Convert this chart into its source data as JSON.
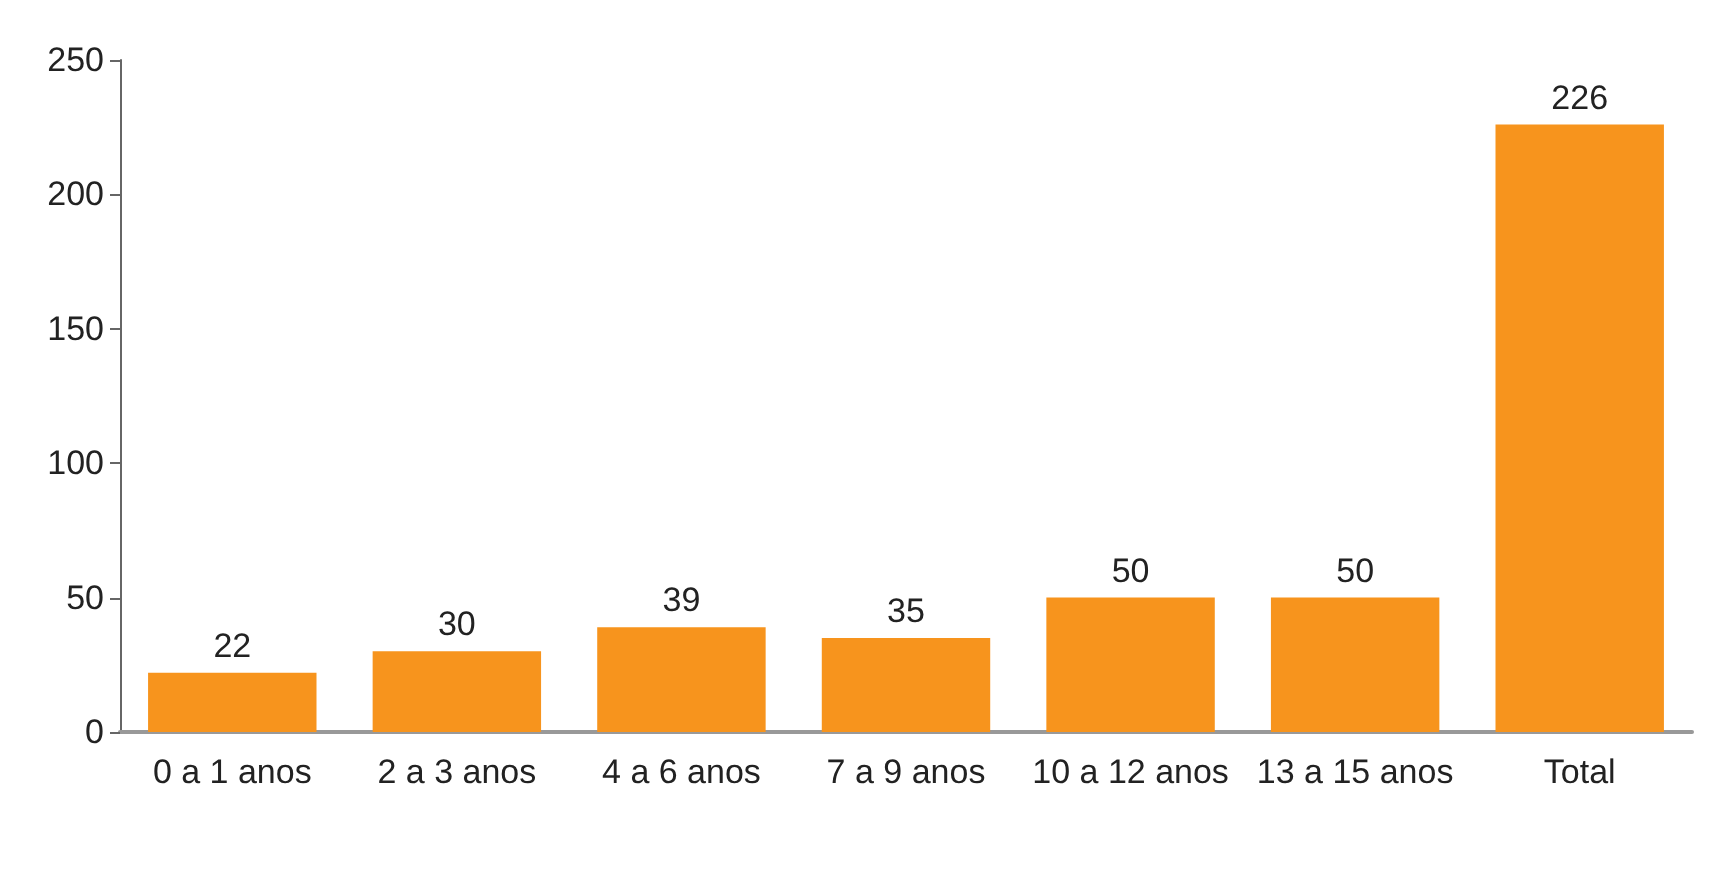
{
  "chart_data": {
    "type": "bar",
    "categories": [
      "0 a 1 anos",
      "2 a 3 anos",
      "4 a 6 anos",
      "7 a 9 anos",
      "10 a 12 anos",
      "13 a 15 anos",
      "Total"
    ],
    "values": [
      22,
      30,
      39,
      35,
      50,
      50,
      226
    ],
    "color": "#f7941d",
    "ylim": [
      0,
      250
    ],
    "yticks": [
      0,
      50,
      100,
      150,
      200,
      250
    ],
    "data_labels": true,
    "grid": false
  }
}
